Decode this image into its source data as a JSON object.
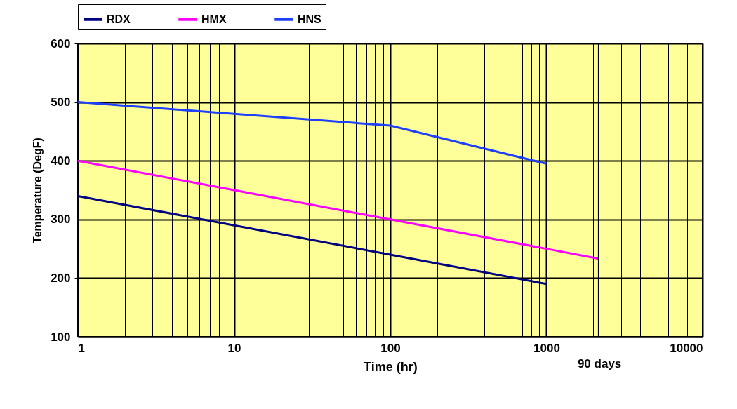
{
  "chart_data": {
    "type": "line",
    "xlabel": "Time (hr)",
    "ylabel": "Temperature (DegF)",
    "log": "x",
    "x": [
      1,
      10,
      100,
      1000
    ],
    "series": [
      {
        "name": "RDX",
        "color": "#000080",
        "values": [
          340,
          290,
          240,
          190
        ]
      },
      {
        "name": "HMX",
        "color": "#ff00ff",
        "x": [
          1,
          10,
          100,
          1000,
          2160
        ],
        "values": [
          400,
          350,
          300,
          250,
          233
        ]
      },
      {
        "name": "HNS",
        "color": "#1f3fff",
        "values": [
          500,
          480,
          460,
          395
        ]
      }
    ],
    "xlim": [
      1,
      10000
    ],
    "xticks": [
      1,
      {
        "value": 2,
        "label": null
      },
      {
        "value": 3,
        "label": null
      },
      {
        "value": 4,
        "label": null
      },
      {
        "value": 5,
        "label": null
      },
      {
        "value": 6,
        "label": null
      },
      {
        "value": 7,
        "label": null
      },
      {
        "value": 8,
        "label": null
      },
      {
        "value": 9,
        "label": null
      },
      10,
      {
        "value": 20,
        "label": null
      },
      {
        "value": 30,
        "label": null
      },
      {
        "value": 40,
        "label": null
      },
      {
        "value": 50,
        "label": null
      },
      {
        "value": 60,
        "label": null
      },
      {
        "value": 70,
        "label": null
      },
      {
        "value": 80,
        "label": null
      },
      {
        "value": 90,
        "label": null
      },
      100,
      {
        "value": 200,
        "label": null
      },
      {
        "value": 300,
        "label": null
      },
      {
        "value": 400,
        "label": null
      },
      {
        "value": 500,
        "label": null
      },
      {
        "value": 600,
        "label": null
      },
      {
        "value": 700,
        "label": null
      },
      {
        "value": 800,
        "label": null
      },
      {
        "value": 900,
        "label": null
      },
      1000,
      {
        "value": 2000,
        "label": null
      },
      {
        "value": 3000,
        "label": null
      },
      {
        "value": 4000,
        "label": null
      },
      {
        "value": 5000,
        "label": null
      },
      {
        "value": 6000,
        "label": null
      },
      {
        "value": 7000,
        "label": null
      },
      {
        "value": 8000,
        "label": null
      },
      {
        "value": 9000,
        "label": null
      },
      10000
    ],
    "ylim": [
      100,
      600
    ],
    "yticks": [
      100,
      200,
      300,
      400,
      500,
      600
    ],
    "ref_lines": [
      {
        "axis": "x",
        "value": 2160,
        "label": "90 days",
        "color": "#000000"
      }
    ],
    "grid": true,
    "legend": "top",
    "line_style": "solid",
    "marker": "none"
  }
}
